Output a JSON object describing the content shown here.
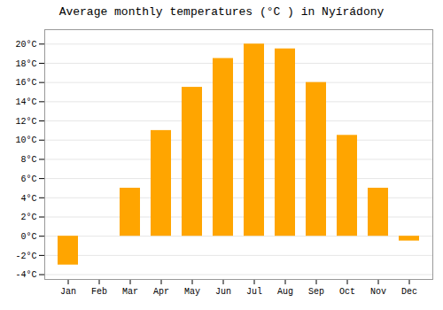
{
  "chart_data": {
    "type": "bar",
    "title": "Average monthly temperatures (°C ) in Nyírádony",
    "categories": [
      "Jan",
      "Feb",
      "Mar",
      "Apr",
      "May",
      "Jun",
      "Jul",
      "Aug",
      "Sep",
      "Oct",
      "Nov",
      "Dec"
    ],
    "values": [
      -3.0,
      0.0,
      5.0,
      11.0,
      15.5,
      18.5,
      20.0,
      19.5,
      16.0,
      10.5,
      5.0,
      -0.5
    ],
    "color": "#FFA500",
    "ylim": [
      -4.5,
      21.5
    ],
    "yticks": [
      {
        "value": -4,
        "label": "-4°C"
      },
      {
        "value": -2,
        "label": "-2°C"
      },
      {
        "value": 0,
        "label": "0°C"
      },
      {
        "value": 2,
        "label": "2°C"
      },
      {
        "value": 4,
        "label": "4°C"
      },
      {
        "value": 6,
        "label": "6°C"
      },
      {
        "value": 8,
        "label": "8°C"
      },
      {
        "value": 10,
        "label": "10°C"
      },
      {
        "value": 12,
        "label": "12°C"
      },
      {
        "value": 14,
        "label": "14°C"
      },
      {
        "value": 16,
        "label": "16°C"
      },
      {
        "value": 18,
        "label": "18°C"
      },
      {
        "value": 20,
        "label": "20°C"
      }
    ],
    "grid": true
  }
}
